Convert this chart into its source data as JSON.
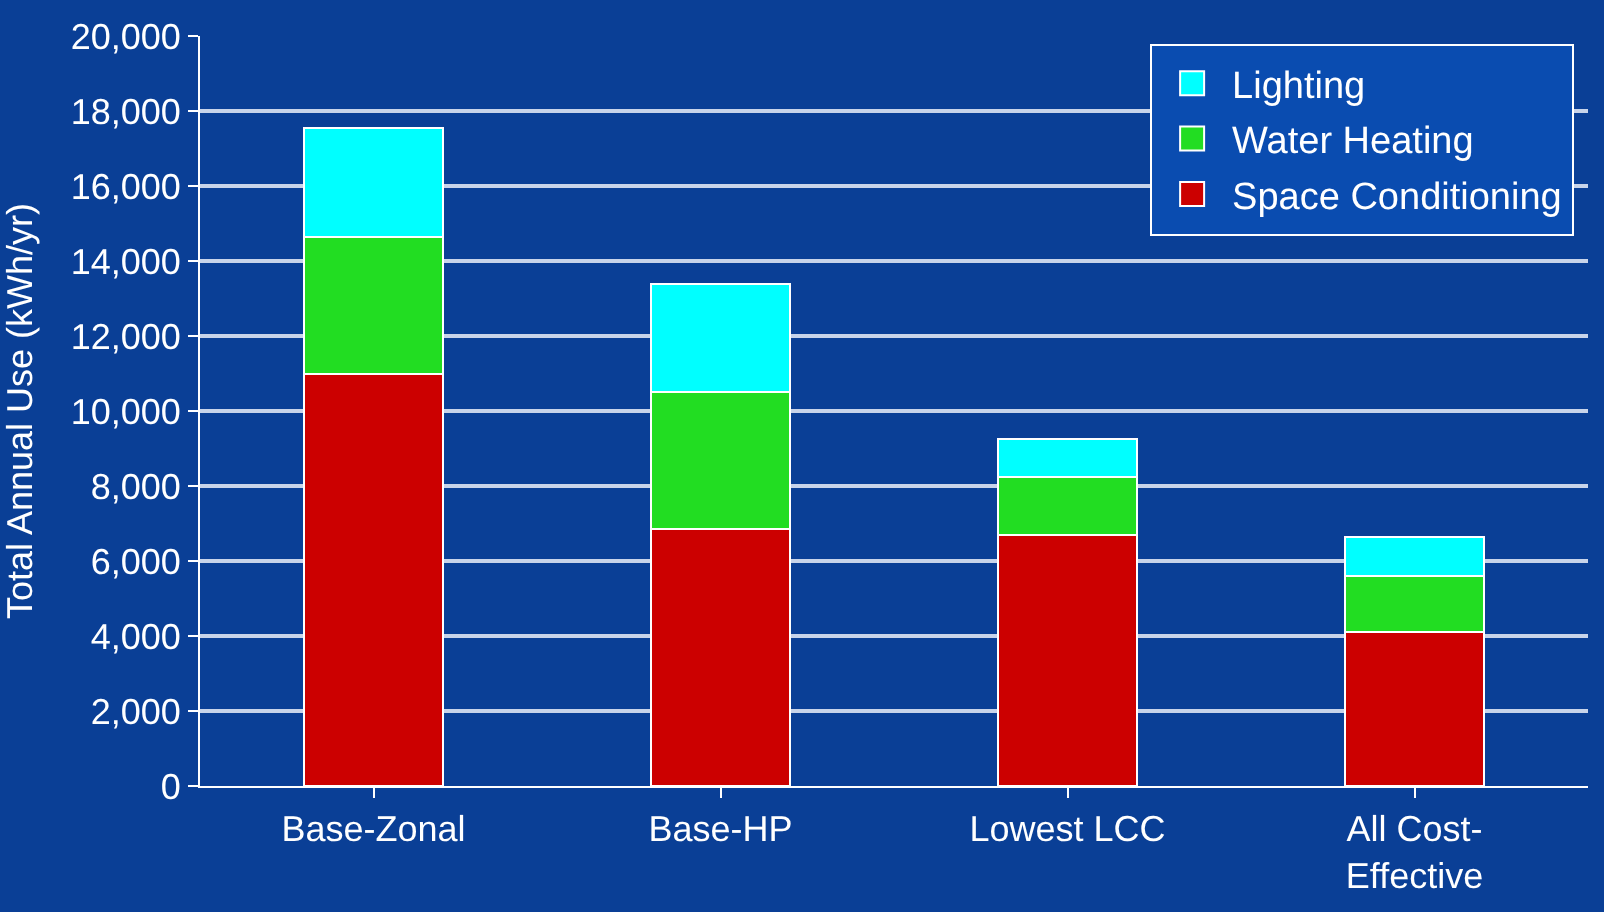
{
  "chart_data": {
    "type": "bar",
    "stacked": true,
    "ylabel": "Total Annual Use (kWh/yr)",
    "categories": [
      "Base-Zonal",
      "Base-HP",
      "Lowest LCC",
      "All Cost-Effective"
    ],
    "series": [
      {
        "name": "Space Conditioning",
        "color": "#cc0000",
        "values": [
          11000,
          6850,
          6700,
          4100
        ]
      },
      {
        "name": "Water Heating",
        "color": "#22dd22",
        "values": [
          3650,
          3650,
          1550,
          1500
        ]
      },
      {
        "name": "Lighting",
        "color": "#00ffff",
        "values": [
          2900,
          2900,
          1000,
          1050
        ]
      }
    ],
    "ylim": [
      0,
      20000
    ],
    "yticks": [
      0,
      {
        "value": 2000,
        "label": "2,000"
      },
      {
        "value": 4000,
        "label": "4,000"
      },
      {
        "value": 6000,
        "label": "6,000"
      },
      {
        "value": 8000,
        "label": "8,000"
      },
      {
        "value": 10000,
        "label": "10,000"
      },
      {
        "value": 12000,
        "label": "12,000"
      },
      {
        "value": 14000,
        "label": "14,000"
      },
      {
        "value": 16000,
        "label": "16,000"
      },
      {
        "value": 18000,
        "label": "18,000"
      },
      {
        "value": 20000,
        "label": "20,000"
      }
    ],
    "grid": "y",
    "legend": "top right"
  }
}
